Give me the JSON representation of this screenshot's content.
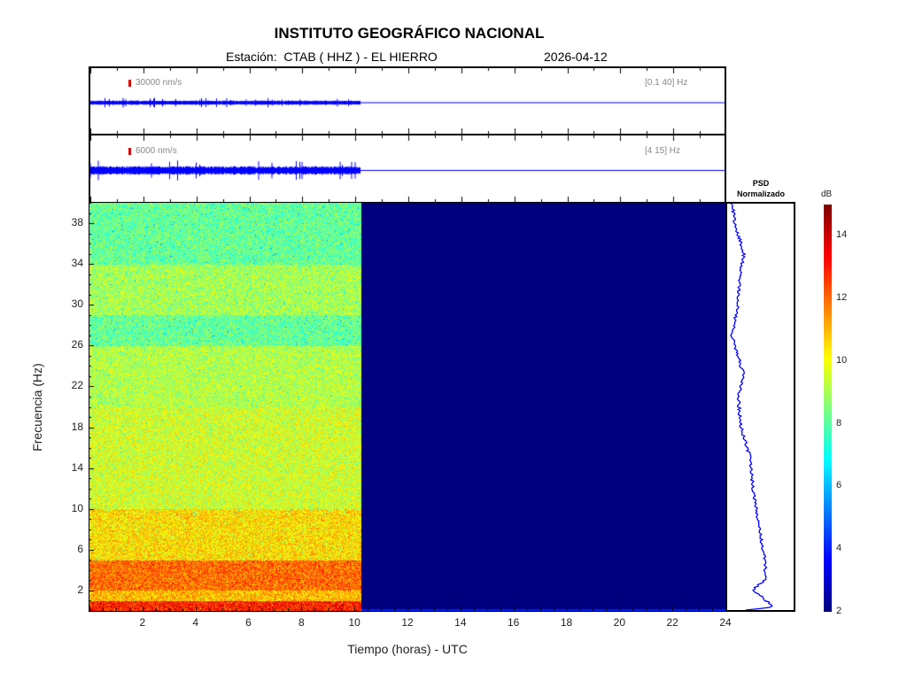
{
  "header": {
    "title": "INSTITUTO GEOGRÁFICO NACIONAL",
    "station": "Estación:  CTAB ( HHZ ) - EL HIERRO",
    "date": "2026-04-12"
  },
  "traces": [
    {
      "scale": "30000 nm/s",
      "band": "[0.1 40] Hz",
      "color": "#0000ff"
    },
    {
      "scale": "6000 nm/s",
      "band": "[4 15] Hz",
      "color": "#0000ff"
    }
  ],
  "psd": {
    "title_line1": "PSD",
    "title_line2": "Normalizado"
  },
  "colorbar": {
    "label": "dB",
    "ticks": [
      "2",
      "4",
      "6",
      "8",
      "10",
      "12",
      "14"
    ],
    "range": [
      2,
      15
    ]
  },
  "chart_data": {
    "type": "heatmap",
    "title": "INSTITUTO GEOGRÁFICO NACIONAL",
    "xlabel": "Tiempo (horas) - UTC",
    "ylabel": "Frecuencia  (Hz)",
    "xlim": [
      0,
      24
    ],
    "ylim": [
      0,
      40
    ],
    "xticks": [
      "2",
      "4",
      "6",
      "8",
      "10",
      "12",
      "14",
      "16",
      "18",
      "20",
      "22",
      "24"
    ],
    "yticks": [
      "2",
      "6",
      "10",
      "14",
      "18",
      "22",
      "26",
      "30",
      "34",
      "38"
    ],
    "data_end_hour": 10.25,
    "no_data_db": 2,
    "bands": [
      {
        "f0": 0,
        "f1": 1,
        "db": 13
      },
      {
        "f0": 1,
        "f1": 2,
        "db": 11
      },
      {
        "f0": 2,
        "f1": 5,
        "db": 12
      },
      {
        "f0": 5,
        "f1": 10,
        "db": 10.5
      },
      {
        "f0": 10,
        "f1": 20,
        "db": 9.6
      },
      {
        "f0": 20,
        "f1": 26,
        "db": 9.2
      },
      {
        "f0": 26,
        "f1": 29,
        "db": 8.2
      },
      {
        "f0": 29,
        "f1": 34,
        "db": 9
      },
      {
        "f0": 34,
        "f1": 40,
        "db": 8.2
      }
    ],
    "psd_profile": {
      "freq": [
        0,
        0.3,
        1,
        2,
        3,
        5,
        8,
        12,
        15,
        18,
        21,
        23,
        27,
        30,
        33,
        35,
        38,
        40
      ],
      "value": [
        0.3,
        0.75,
        0.6,
        0.4,
        0.6,
        0.6,
        0.5,
        0.4,
        0.35,
        0.2,
        0.15,
        0.25,
        0.05,
        0.15,
        0.18,
        0.25,
        0.1,
        0.05
      ]
    }
  }
}
